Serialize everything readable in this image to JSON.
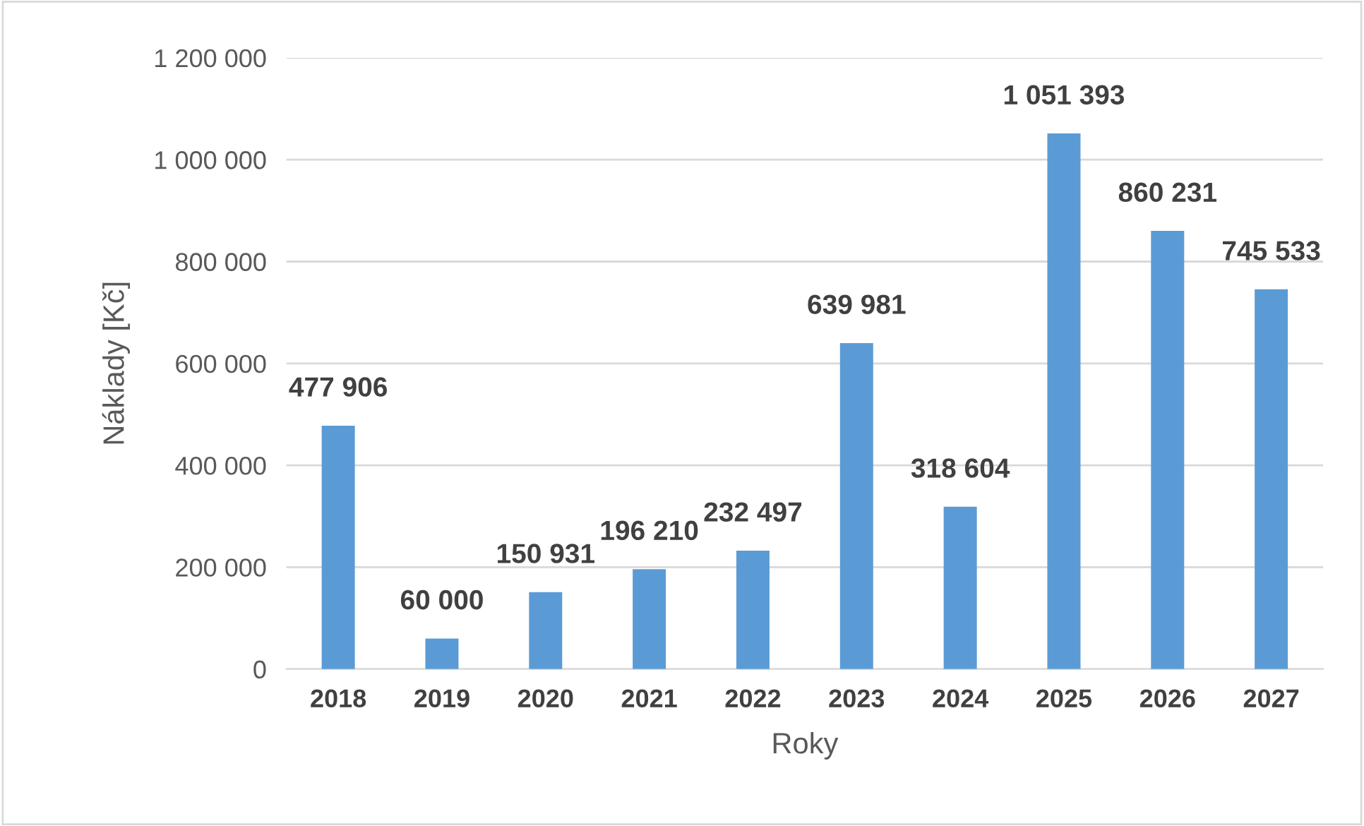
{
  "chart_data": {
    "type": "bar",
    "xlabel": "Roky",
    "ylabel": "Náklady [Kč]",
    "categories": [
      "2018",
      "2019",
      "2020",
      "2021",
      "2022",
      "2023",
      "2024",
      "2025",
      "2026",
      "2027"
    ],
    "values": [
      477906,
      60000,
      150931,
      196210,
      232497,
      639981,
      318604,
      1051393,
      860231,
      745533
    ],
    "value_labels": [
      "477 906",
      "60 000",
      "150 931",
      "196 210",
      "232 497",
      "639 981",
      "318 604",
      "1 051 393",
      "860 231",
      "745 533"
    ],
    "color": "#5b9bd5",
    "ylim": [
      0,
      1200000
    ],
    "yticks": [
      0,
      {
        "value": 200000,
        "label": "200 000"
      },
      {
        "value": 400000,
        "label": "400 000"
      },
      {
        "value": 600000,
        "label": "600 000"
      },
      {
        "value": 800000,
        "label": "800 000"
      },
      {
        "value": 1000000,
        "label": "1 000 000"
      },
      {
        "value": 1200000,
        "label": "1 200 000"
      }
    ],
    "grid": "y",
    "legend": false
  }
}
